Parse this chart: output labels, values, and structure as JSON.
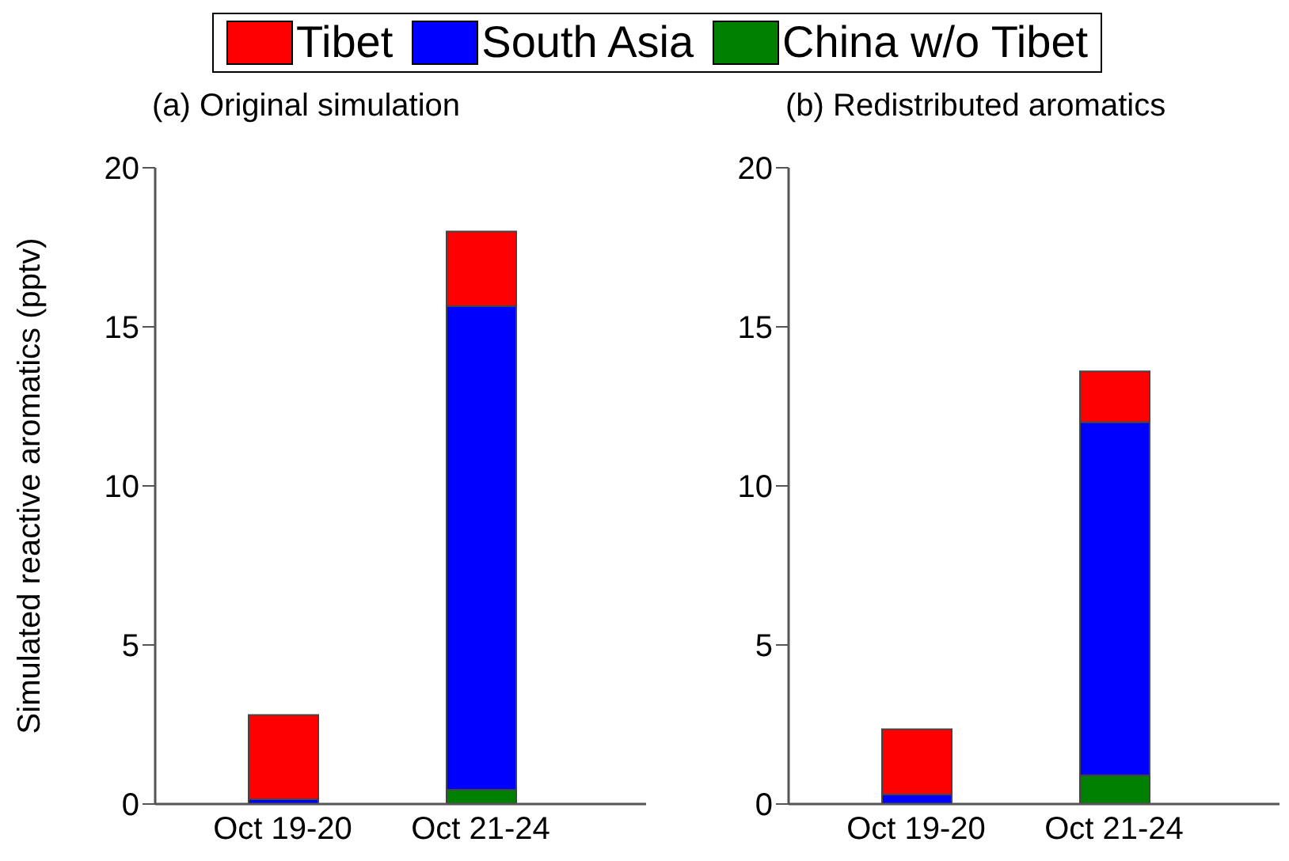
{
  "chart_data": [
    {
      "type": "bar",
      "title": "(a) Original simulation",
      "ylabel": "Simulated reactive aromatics (pptv)",
      "categories": [
        "Oct 19-20",
        "Oct 21-24"
      ],
      "stacked": true,
      "legend": "top",
      "ylim": [
        0,
        20
      ],
      "yticks": [
        0,
        5,
        10,
        15,
        20
      ],
      "series": [
        {
          "name": "China w/o Tibet",
          "color": "#008000",
          "values": [
            0,
            0.45
          ]
        },
        {
          "name": "South Asia",
          "color": "#0000ff",
          "values": [
            0.15,
            15.2
          ]
        },
        {
          "name": "Tibet",
          "color": "#ff0000",
          "values": [
            2.65,
            2.35
          ]
        }
      ]
    },
    {
      "type": "bar",
      "title": "(b) Redistributed aromatics",
      "categories": [
        "Oct 19-20",
        "Oct 21-24"
      ],
      "stacked": true,
      "ylim": [
        0,
        20
      ],
      "yticks": [
        0,
        5,
        10,
        15,
        20
      ],
      "series": [
        {
          "color": "#008000",
          "values": [
            0,
            0.9
          ]
        },
        {
          "color": "#0000ff",
          "values": [
            0.3,
            11.1
          ]
        },
        {
          "color": "#ff0000",
          "values": [
            2.05,
            1.6
          ]
        }
      ]
    }
  ]
}
